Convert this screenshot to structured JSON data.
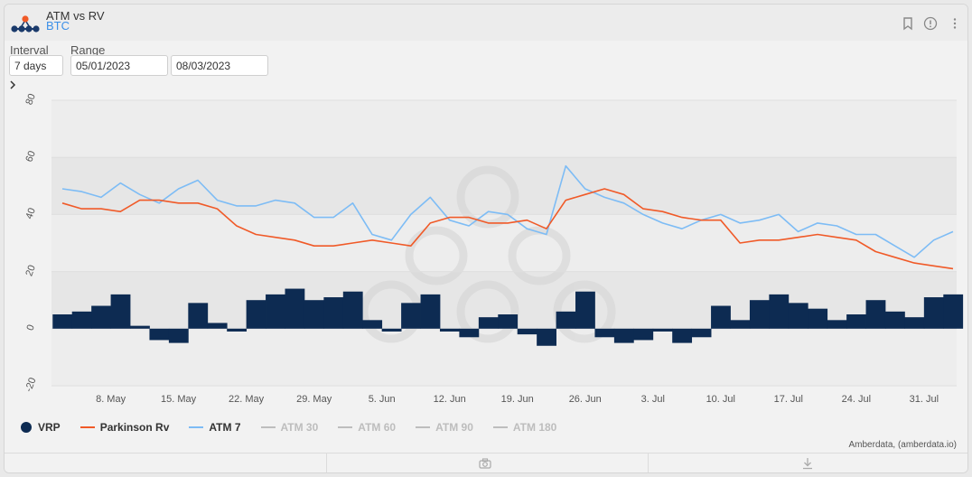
{
  "header": {
    "title": "ATM vs RV",
    "subtitle": "BTC"
  },
  "controls": {
    "interval_label": "Interval",
    "interval_value": "7 days",
    "range_label": "Range",
    "range_start": "05/01/2023",
    "range_end": "08/03/2023"
  },
  "icons": {
    "bookmark": "bookmark-icon",
    "info": "info-icon",
    "menu": "kebab-menu-icon",
    "camera": "camera-icon",
    "download": "download-icon",
    "expand": "chevron-right-icon"
  },
  "colors": {
    "vrp": "#0d2b52",
    "parkinson": "#f05a28",
    "atm7": "#7dbcf5",
    "inactive": "#bdbdbd"
  },
  "credit": "Amberdata, (amberdata.io)",
  "chart_data": {
    "type": "line",
    "title": "ATM vs RV",
    "x_range": [
      "2023-05-03",
      "2023-08-03"
    ],
    "x_ticks": [
      "8. May",
      "15. May",
      "22. May",
      "29. May",
      "5. Jun",
      "12. Jun",
      "19. Jun",
      "26. Jun",
      "3. Jul",
      "10. Jul",
      "17. Jul",
      "24. Jul",
      "31. Jul"
    ],
    "y_ticks": [
      "80",
      "60",
      "40",
      "20",
      "0",
      "-20"
    ],
    "ylim": [
      -20,
      80
    ],
    "grid": true,
    "legend_position": "bottom-left",
    "series": [
      {
        "name": "VRP",
        "type": "column",
        "active": true,
        "x": [
          "2023-05-03",
          "2023-05-05",
          "2023-05-07",
          "2023-05-09",
          "2023-05-11",
          "2023-05-13",
          "2023-05-15",
          "2023-05-17",
          "2023-05-19",
          "2023-05-21",
          "2023-05-23",
          "2023-05-25",
          "2023-05-27",
          "2023-05-29",
          "2023-05-31",
          "2023-06-02",
          "2023-06-04",
          "2023-06-06",
          "2023-06-08",
          "2023-06-10",
          "2023-06-12",
          "2023-06-14",
          "2023-06-16",
          "2023-06-18",
          "2023-06-20",
          "2023-06-22",
          "2023-06-24",
          "2023-06-26",
          "2023-06-28",
          "2023-06-30",
          "2023-07-02",
          "2023-07-04",
          "2023-07-06",
          "2023-07-08",
          "2023-07-10",
          "2023-07-12",
          "2023-07-14",
          "2023-07-16",
          "2023-07-18",
          "2023-07-20",
          "2023-07-22",
          "2023-07-24",
          "2023-07-26",
          "2023-07-28",
          "2023-07-30",
          "2023-08-01",
          "2023-08-03"
        ],
        "values": [
          5,
          6,
          8,
          12,
          1,
          -4,
          -5,
          9,
          2,
          -1,
          10,
          12,
          14,
          10,
          11,
          13,
          3,
          -1,
          9,
          12,
          -1,
          -3,
          4,
          5,
          -2,
          -6,
          6,
          13,
          -3,
          -5,
          -4,
          -1,
          -5,
          -3,
          8,
          3,
          10,
          12,
          9,
          7,
          3,
          5,
          10,
          6,
          4,
          11,
          12
        ]
      },
      {
        "name": "Parkinson Rv",
        "type": "line",
        "active": true,
        "x": [
          "2023-05-03",
          "2023-05-05",
          "2023-05-07",
          "2023-05-09",
          "2023-05-11",
          "2023-05-13",
          "2023-05-15",
          "2023-05-17",
          "2023-05-19",
          "2023-05-21",
          "2023-05-23",
          "2023-05-25",
          "2023-05-27",
          "2023-05-29",
          "2023-05-31",
          "2023-06-02",
          "2023-06-04",
          "2023-06-06",
          "2023-06-08",
          "2023-06-10",
          "2023-06-12",
          "2023-06-14",
          "2023-06-16",
          "2023-06-18",
          "2023-06-20",
          "2023-06-22",
          "2023-06-24",
          "2023-06-26",
          "2023-06-28",
          "2023-06-30",
          "2023-07-02",
          "2023-07-04",
          "2023-07-06",
          "2023-07-08",
          "2023-07-10",
          "2023-07-12",
          "2023-07-14",
          "2023-07-16",
          "2023-07-18",
          "2023-07-20",
          "2023-07-22",
          "2023-07-24",
          "2023-07-26",
          "2023-07-28",
          "2023-07-30",
          "2023-08-01",
          "2023-08-03"
        ],
        "values": [
          44,
          42,
          42,
          41,
          45,
          45,
          44,
          44,
          42,
          36,
          33,
          32,
          31,
          29,
          29,
          30,
          31,
          30,
          29,
          37,
          39,
          39,
          37,
          37,
          38,
          35,
          45,
          47,
          49,
          47,
          42,
          41,
          39,
          38,
          38,
          30,
          31,
          31,
          32,
          33,
          32,
          31,
          27,
          25,
          23,
          22,
          21
        ]
      },
      {
        "name": "ATM 7",
        "type": "line",
        "active": true,
        "x": [
          "2023-05-03",
          "2023-05-05",
          "2023-05-07",
          "2023-05-09",
          "2023-05-11",
          "2023-05-13",
          "2023-05-15",
          "2023-05-17",
          "2023-05-19",
          "2023-05-21",
          "2023-05-23",
          "2023-05-25",
          "2023-05-27",
          "2023-05-29",
          "2023-05-31",
          "2023-06-02",
          "2023-06-04",
          "2023-06-06",
          "2023-06-08",
          "2023-06-10",
          "2023-06-12",
          "2023-06-14",
          "2023-06-16",
          "2023-06-18",
          "2023-06-20",
          "2023-06-22",
          "2023-06-24",
          "2023-06-26",
          "2023-06-28",
          "2023-06-30",
          "2023-07-02",
          "2023-07-04",
          "2023-07-06",
          "2023-07-08",
          "2023-07-10",
          "2023-07-12",
          "2023-07-14",
          "2023-07-16",
          "2023-07-18",
          "2023-07-20",
          "2023-07-22",
          "2023-07-24",
          "2023-07-26",
          "2023-07-28",
          "2023-07-30",
          "2023-08-01",
          "2023-08-03"
        ],
        "values": [
          49,
          48,
          46,
          51,
          47,
          44,
          49,
          52,
          45,
          43,
          43,
          45,
          44,
          39,
          39,
          44,
          33,
          31,
          40,
          46,
          38,
          36,
          41,
          40,
          35,
          33,
          57,
          49,
          46,
          44,
          40,
          37,
          35,
          38,
          40,
          37,
          38,
          40,
          34,
          37,
          36,
          33,
          33,
          29,
          25,
          31,
          34
        ]
      },
      {
        "name": "ATM 30",
        "type": "line",
        "active": false
      },
      {
        "name": "ATM 60",
        "type": "line",
        "active": false
      },
      {
        "name": "ATM 90",
        "type": "line",
        "active": false
      },
      {
        "name": "ATM 180",
        "type": "line",
        "active": false
      }
    ]
  }
}
